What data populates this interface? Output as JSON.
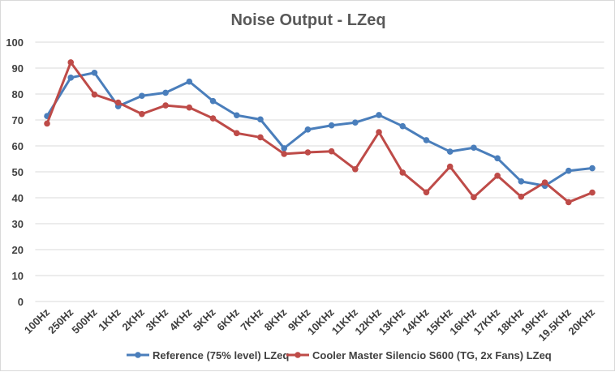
{
  "chart_data": {
    "type": "line",
    "title": "Noise Output  - LZeq",
    "xlabel": "",
    "ylabel": "",
    "ylim": [
      0,
      100
    ],
    "yticks": [
      0,
      10,
      20,
      30,
      40,
      50,
      60,
      70,
      80,
      90,
      100
    ],
    "grid": true,
    "legend_position": "bottom",
    "categories": [
      "100Hz",
      "250Hz",
      "500Hz",
      "1KHz",
      "2KHz",
      "3KHz",
      "4KHz",
      "5KHz",
      "6KHz",
      "7KHz",
      "8KHz",
      "9KHz",
      "10KHz",
      "11KHz",
      "12KHz",
      "13KHz",
      "14KHz",
      "15KHz",
      "16KHz",
      "17KHz",
      "18KHz",
      "19KHz",
      "19.5KHz",
      "20KHz"
    ],
    "series": [
      {
        "name": "Reference (75% level) LZeq",
        "color": "#4a7ebb",
        "values": [
          71.5,
          86.3,
          88.2,
          75.3,
          79.3,
          80.5,
          84.8,
          77.3,
          71.8,
          70.2,
          59.1,
          66.3,
          67.9,
          69.0,
          71.9,
          67.6,
          62.2,
          57.8,
          59.3,
          55.2,
          46.3,
          44.6,
          50.4,
          51.4
        ]
      },
      {
        "name": "Cooler Master Silencio  S600 (TG, 2x Fans) LZeq",
        "color": "#be4b48",
        "values": [
          68.6,
          92.2,
          79.8,
          76.7,
          72.3,
          75.6,
          74.8,
          70.6,
          64.9,
          63.3,
          56.9,
          57.5,
          57.9,
          51.0,
          65.3,
          49.7,
          42.1,
          52.0,
          40.2,
          48.5,
          40.4,
          45.9,
          38.3,
          42.0
        ]
      }
    ]
  }
}
